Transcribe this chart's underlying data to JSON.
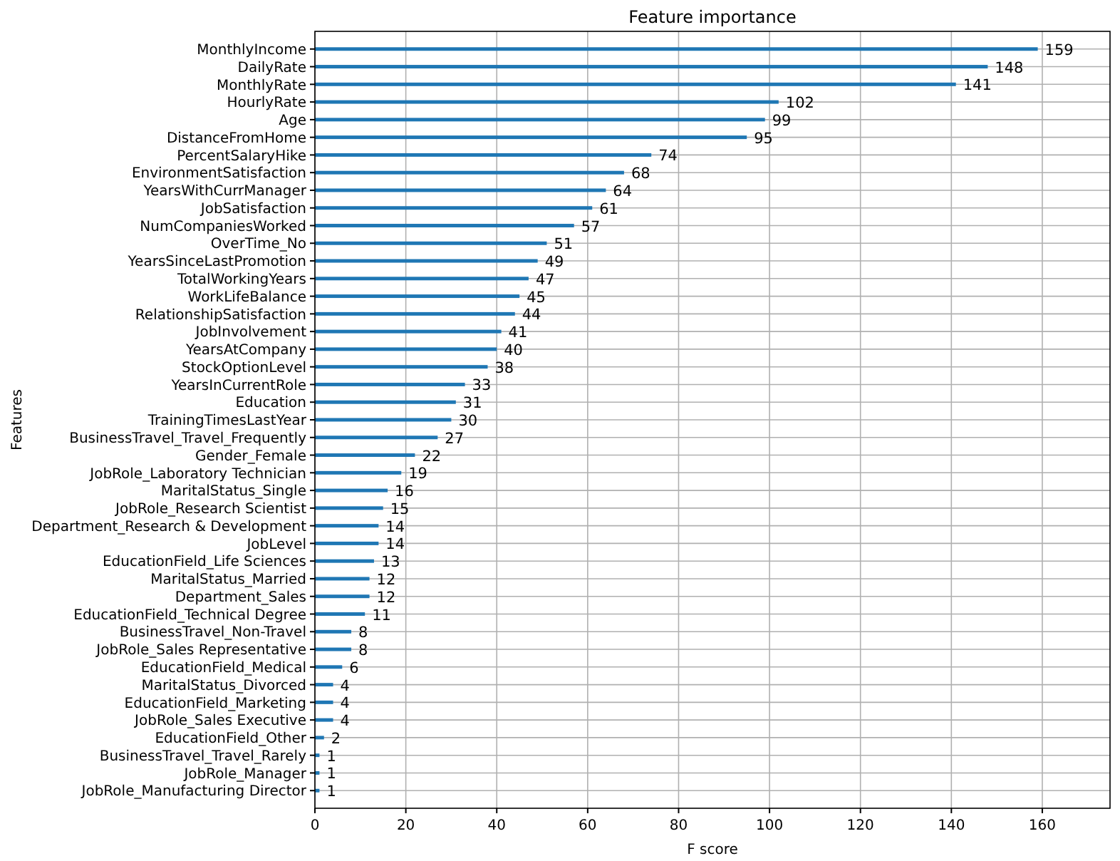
{
  "chart_data": {
    "type": "bar",
    "orientation": "horizontal",
    "title": "Feature importance",
    "xlabel": "F score",
    "ylabel": "Features",
    "categories": [
      "MonthlyIncome",
      "DailyRate",
      "MonthlyRate",
      "HourlyRate",
      "Age",
      "DistanceFromHome",
      "PercentSalaryHike",
      "EnvironmentSatisfaction",
      "YearsWithCurrManager",
      "JobSatisfaction",
      "NumCompaniesWorked",
      "OverTime_No",
      "YearsSinceLastPromotion",
      "TotalWorkingYears",
      "WorkLifeBalance",
      "RelationshipSatisfaction",
      "JobInvolvement",
      "YearsAtCompany",
      "StockOptionLevel",
      "YearsInCurrentRole",
      "Education",
      "TrainingTimesLastYear",
      "BusinessTravel_Travel_Frequently",
      "Gender_Female",
      "JobRole_Laboratory Technician",
      "MaritalStatus_Single",
      "JobRole_Research Scientist",
      "Department_Research & Development",
      "JobLevel",
      "EducationField_Life Sciences",
      "MaritalStatus_Married",
      "Department_Sales",
      "EducationField_Technical Degree",
      "BusinessTravel_Non-Travel",
      "JobRole_Sales Representative",
      "EducationField_Medical",
      "MaritalStatus_Divorced",
      "EducationField_Marketing",
      "JobRole_Sales Executive",
      "EducationField_Other",
      "BusinessTravel_Travel_Rarely",
      "JobRole_Manager",
      "JobRole_Manufacturing Director"
    ],
    "values": [
      159,
      148,
      141,
      102,
      99,
      95,
      74,
      68,
      64,
      61,
      57,
      51,
      49,
      47,
      45,
      44,
      41,
      40,
      38,
      33,
      31,
      30,
      27,
      22,
      19,
      16,
      15,
      14,
      14,
      13,
      12,
      12,
      11,
      8,
      8,
      6,
      4,
      4,
      4,
      2,
      1,
      1,
      1
    ],
    "color": "#1f77b4",
    "data_labels": true,
    "grid": true,
    "xlim": [
      0,
      174.9
    ],
    "xticks": [
      0,
      20,
      40,
      60,
      80,
      100,
      120,
      140,
      160
    ]
  }
}
